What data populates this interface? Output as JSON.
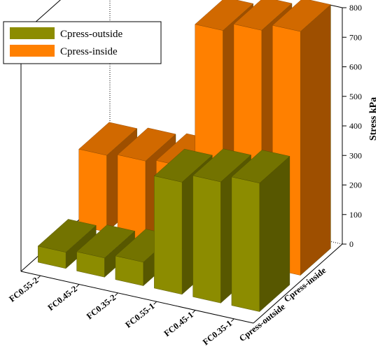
{
  "chart_data": {
    "type": "bar",
    "chart_style": "3d-bar",
    "title": "",
    "xlabel": "",
    "ylabel": "",
    "zlabel": "Stress kPa",
    "categories": [
      "FC0.55-2",
      "FC0.45-2",
      "FC0.35-2",
      "FC0.55-1",
      "FC0.45-1",
      "FC0.35-1"
    ],
    "series": [
      {
        "name": "Cpress-outside",
        "color": "#8c8c00",
        "values": [
          55,
          65,
          80,
          380,
          410,
          435
        ]
      },
      {
        "name": "Cpress-inside",
        "color": "#ff8000",
        "values": [
          260,
          270,
          280,
          770,
          800,
          825
        ]
      }
    ],
    "zlim": [
      0,
      800
    ],
    "zticks": [
      0,
      100,
      200,
      300,
      400,
      500,
      600,
      700,
      800
    ],
    "grid": false,
    "legend_position": "top-left"
  }
}
